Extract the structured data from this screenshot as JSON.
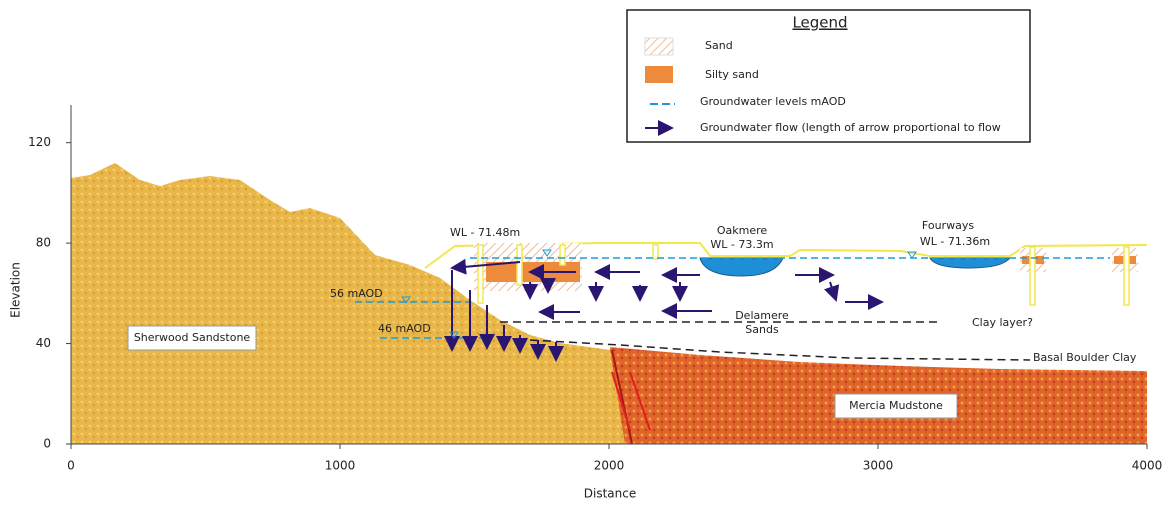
{
  "axes": {
    "x_label": "Distance",
    "y_label": "Elevation",
    "xlim": [
      0,
      4000
    ],
    "xticks": [
      0,
      1000,
      2000,
      3000,
      4000
    ],
    "ylim": [
      0,
      135
    ],
    "yticks": [
      0,
      40,
      80,
      120
    ]
  },
  "legend": {
    "title": "Legend",
    "items": [
      "Sand",
      "Silty sand",
      "Groundwater levels mAOD",
      "Groundwater flow (length of arrow proportional to flow"
    ]
  },
  "annotations": {
    "wl_left": "WL - 71.48m",
    "oakmere": "Oakmere",
    "wl_oakmere": "WL - 73.3m",
    "fourways": "Fourways",
    "wl_fourways": "WL - 71.36m",
    "level_56": "56 mAOD",
    "level_46": "46 mAOD",
    "delamere_1": "Delamere",
    "delamere_2": "Sands",
    "clay": "Clay layer?",
    "boulder": "Basal Boulder Clay",
    "sherwood": "Sherwood Sandstone",
    "mercia": "Mercia Mudstone"
  }
}
